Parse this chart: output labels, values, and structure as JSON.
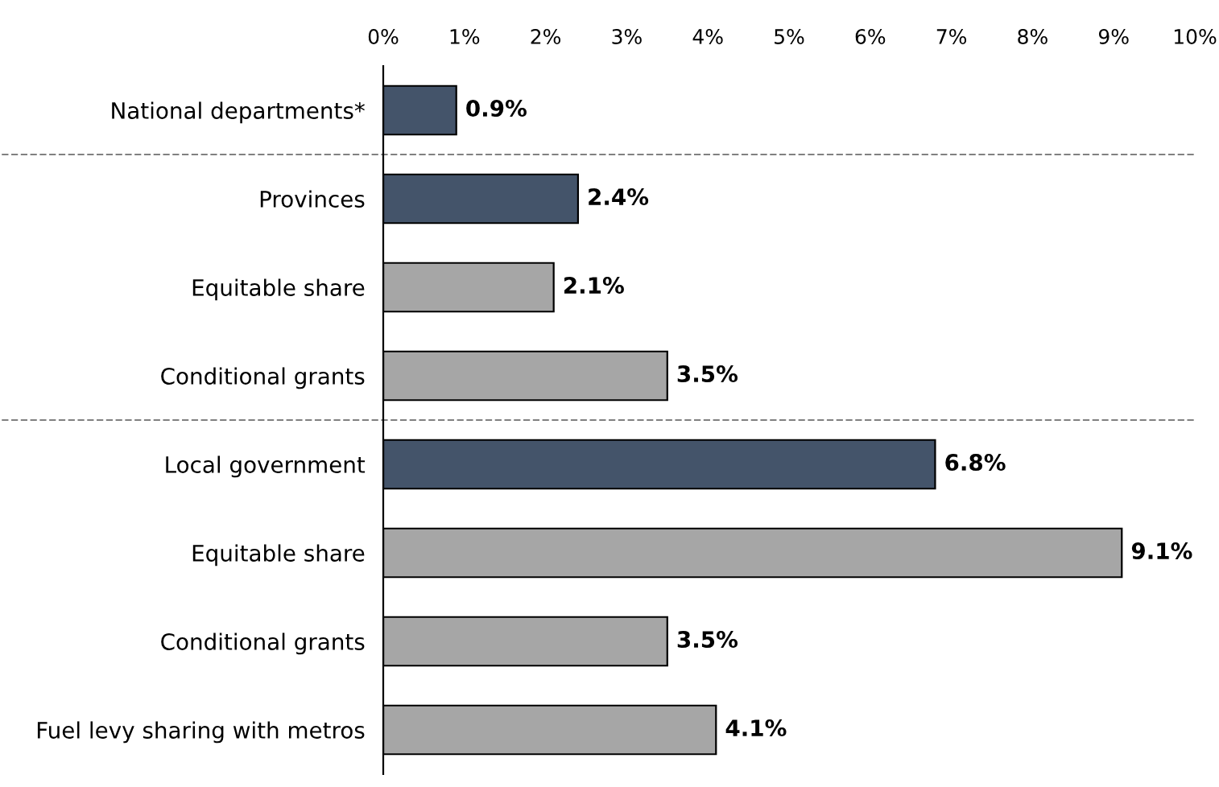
{
  "chart_data": {
    "type": "bar",
    "orientation": "horizontal",
    "categories": [
      "National departments*",
      "Provinces",
      "Equitable share",
      "Conditional grants",
      "Local government",
      "Equitable share",
      "Conditional grants",
      "Fuel levy sharing with metros"
    ],
    "values": [
      0.9,
      2.4,
      2.1,
      3.5,
      6.8,
      9.1,
      3.5,
      4.1
    ],
    "colors": [
      "#44546a",
      "#44546a",
      "#a6a6a6",
      "#a6a6a6",
      "#44546a",
      "#a6a6a6",
      "#a6a6a6",
      "#a6a6a6"
    ],
    "value_labels": [
      "0.9%",
      "2.4%",
      "2.1%",
      "3.5%",
      "6.8%",
      "9.1%",
      "3.5%",
      "4.1%"
    ],
    "xlim": [
      0,
      10
    ],
    "xticks": [
      {
        "value": 0,
        "label": "0%"
      },
      {
        "value": 1,
        "label": "1%"
      },
      {
        "value": 2,
        "label": "2%"
      },
      {
        "value": 3,
        "label": "3%"
      },
      {
        "value": 4,
        "label": "4%"
      },
      {
        "value": 5,
        "label": "5%"
      },
      {
        "value": 6,
        "label": "6%"
      },
      {
        "value": 7,
        "label": "7%"
      },
      {
        "value": 8,
        "label": "8%"
      },
      {
        "value": 9,
        "label": "9%"
      },
      {
        "value": 10,
        "label": "10%"
      }
    ],
    "grid": false
  }
}
